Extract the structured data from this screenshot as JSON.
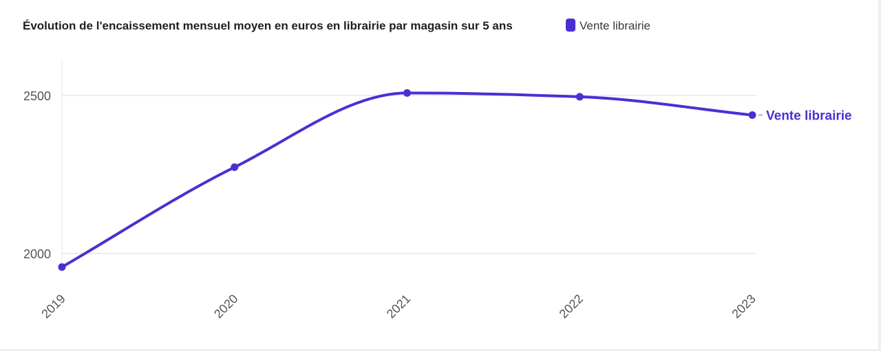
{
  "chart_data": {
    "type": "line",
    "title": "Évolution de l'encaissement mensuel moyen en euros en librairie par magasin sur 5 ans",
    "categories": [
      "2019",
      "2020",
      "2021",
      "2022",
      "2023"
    ],
    "series": [
      {
        "name": "Vente librairie",
        "values": [
          1957,
          2273,
          2508,
          2496,
          2438
        ],
        "color": "#4a2fd3"
      }
    ],
    "legend": {
      "position": "top",
      "entries": [
        "Vente librairie"
      ]
    },
    "end_label": "Vente librairie",
    "yticks": [
      "2000",
      "2500"
    ],
    "ylim": [
      1865,
      2620
    ],
    "xlabel": "",
    "ylabel": "",
    "grid": true,
    "line_style": "smooth"
  }
}
